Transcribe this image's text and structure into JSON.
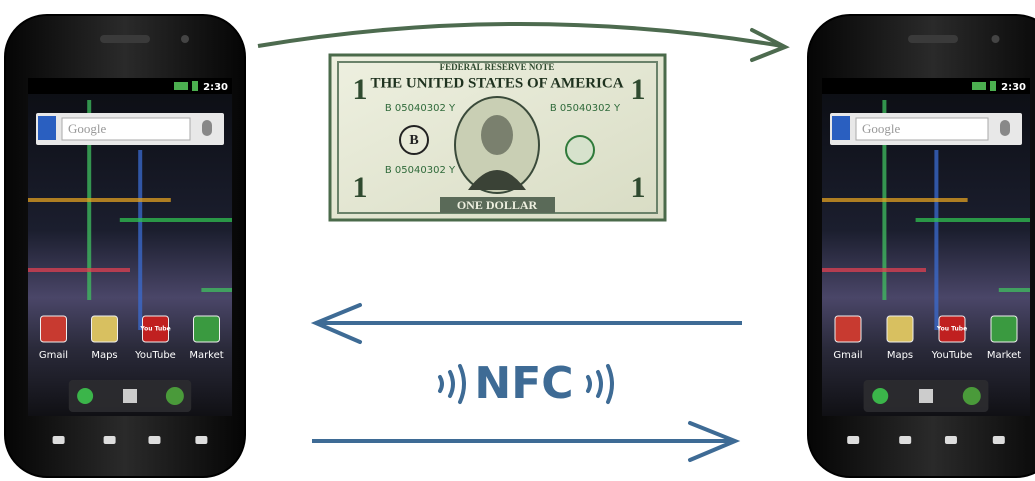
{
  "phones": [
    {
      "time": "2:30",
      "search": "Google",
      "tube_icon": "You Tube",
      "apps": [
        "Gmail",
        "Maps",
        "YouTube",
        "Market"
      ]
    },
    {
      "time": "2:30",
      "search": "Google",
      "tube_icon": "You Tube",
      "apps": [
        "Gmail",
        "Maps",
        "YouTube",
        "Market"
      ]
    }
  ],
  "bill": {
    "header": "FEDERAL RESERVE NOTE",
    "title": "THE UNITED STATES OF AMERICA",
    "serial": "B 05040302 Y",
    "denomination": "ONE DOLLAR",
    "number": "1",
    "seal": "B"
  },
  "nfc": "NFC"
}
